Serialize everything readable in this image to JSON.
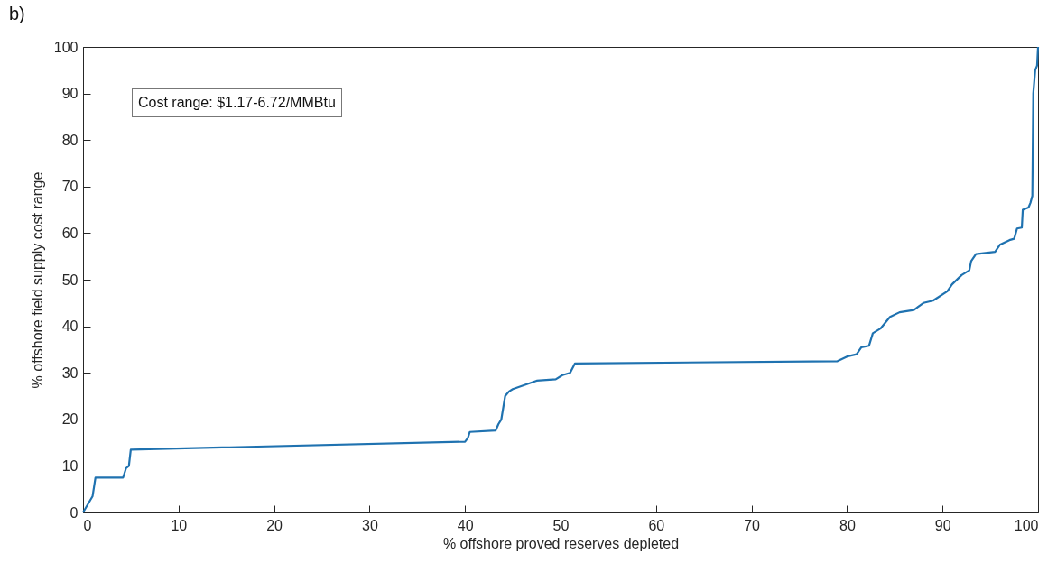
{
  "chart_data": {
    "type": "line",
    "title": "b)",
    "xlabel": "% offshore proved reserves depleted",
    "ylabel": "% offshore field supply cost range",
    "annotations": [
      "Cost range: $1.17-6.72/MMBtu"
    ],
    "xlim": [
      0,
      100
    ],
    "ylim": [
      0,
      100
    ],
    "xticks": [
      0,
      10,
      20,
      30,
      40,
      50,
      60,
      70,
      80,
      90,
      100
    ],
    "yticks": [
      0,
      10,
      20,
      30,
      40,
      50,
      60,
      70,
      80,
      90,
      100
    ],
    "grid": false,
    "line_style": "solid",
    "series": [
      {
        "color": "#1f72b0",
        "x": [
          0,
          1,
          1.3,
          4.2,
          4.5,
          4.8,
          5,
          40,
          40.3,
          40.5,
          43.2,
          43.5,
          43.8,
          44.2,
          44.6,
          45,
          47.5,
          49.5,
          50.2,
          51,
          51.5,
          79,
          80,
          81,
          81.5,
          82.3,
          82.7,
          83.5,
          84.5,
          85.5,
          87,
          88,
          89,
          90.5,
          91,
          92,
          92.8,
          93,
          93.5,
          95.5,
          96,
          97,
          97.5,
          97.8,
          98.3,
          98.4,
          99,
          99.2,
          99.4,
          99.5,
          99.7,
          99.9,
          100
        ],
        "values": [
          0,
          3.5,
          7.5,
          7.5,
          9.5,
          10,
          13.5,
          15.2,
          16,
          17.3,
          17.6,
          19,
          20,
          25,
          26,
          26.5,
          28.3,
          28.6,
          29.5,
          30,
          32,
          32.5,
          33.5,
          34,
          35.5,
          35.8,
          38.5,
          39.5,
          42,
          43,
          43.5,
          45,
          45.5,
          47.5,
          49,
          51,
          52,
          54,
          55.5,
          56,
          57.5,
          58.5,
          58.8,
          61,
          61.2,
          65,
          65.5,
          66.5,
          68,
          90,
          95,
          96,
          100
        ]
      }
    ]
  }
}
